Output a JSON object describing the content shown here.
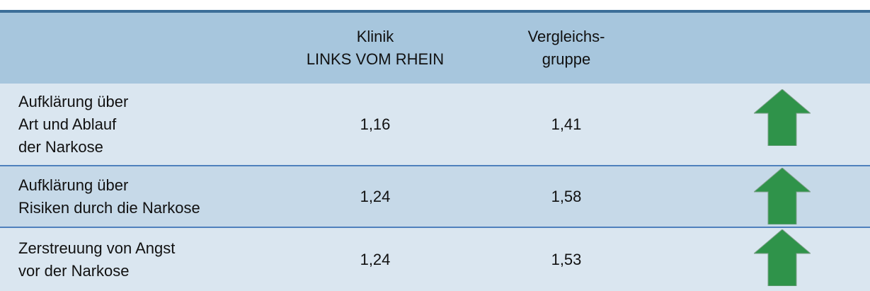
{
  "table": {
    "header": [
      [],
      [
        "Klinik",
        "LINKS VOM RHEIN"
      ],
      [
        "Vergleichs-",
        "gruppe"
      ]
    ],
    "rows": [
      [
        [
          "Aufklärung über",
          "Art und Ablauf",
          "der Narkose"
        ],
        "1,16",
        "1,41"
      ],
      [
        [
          "Aufklärung über",
          "Risiken durch die Narkose"
        ],
        "1,24",
        "1,58"
      ],
      [
        [
          "Zerstreuung von Angst",
          "vor der Narkose"
        ],
        "1,24",
        "1,53"
      ]
    ]
  }
}
